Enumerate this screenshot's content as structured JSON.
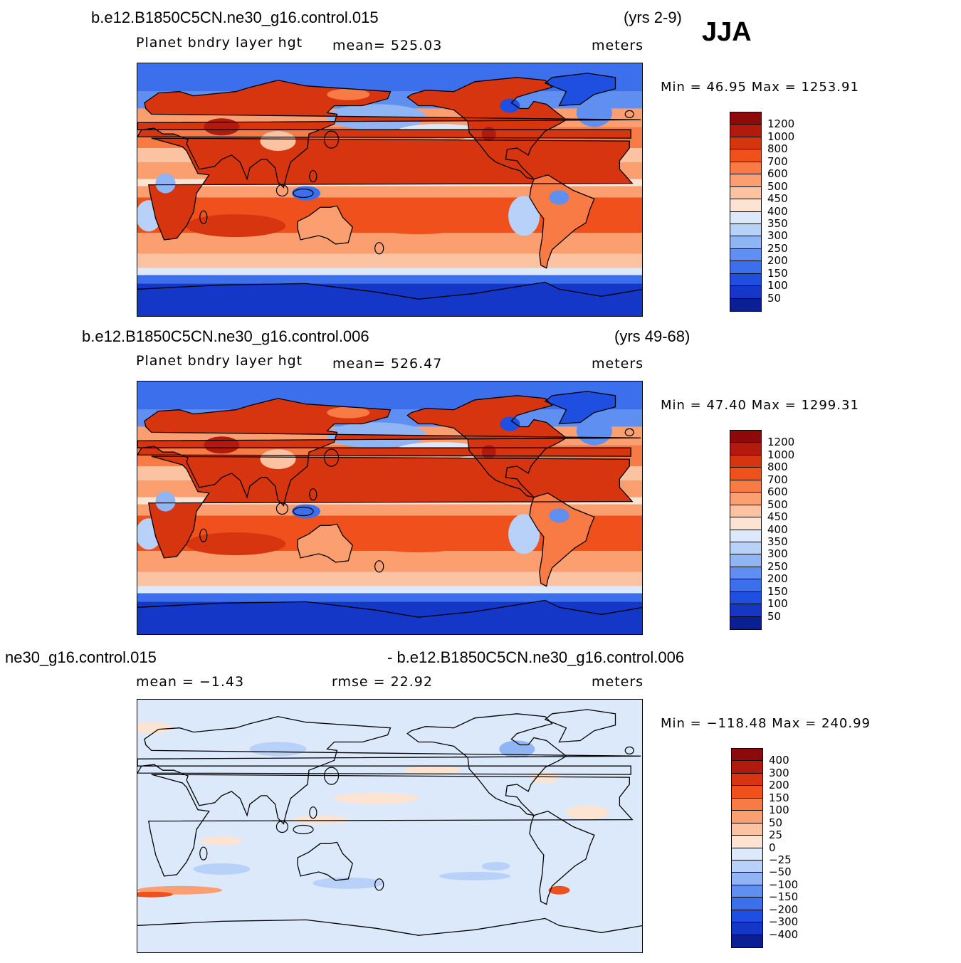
{
  "season": "JJA",
  "panels": [
    {
      "case": "b.e12.B1850C5CN.ne30_g16.control.015",
      "years": "(yrs 2-9)",
      "variable": "Planet bndry layer hgt",
      "mean": "mean= 525.03",
      "units": "meters",
      "minmax": "Min =   46.95 Max = 1253.91",
      "kind": "field"
    },
    {
      "case": "b.e12.B1850C5CN.ne30_g16.control.006",
      "years": "(yrs 49-68)",
      "variable": "Planet bndry layer hgt",
      "mean": "mean= 526.47",
      "units": "meters",
      "minmax": "Min =   47.40 Max = 1299.31",
      "kind": "field"
    },
    {
      "case_left": "ne30_g16.control.015",
      "case_right": "- b.e12.B1850C5CN.ne30_g16.control.006",
      "mean": "mean =   −1.43",
      "rmse": "rmse =   22.92",
      "units": "meters",
      "minmax": "Min = −118.48 Max = 240.99",
      "kind": "diff"
    }
  ],
  "colorbar_field": {
    "labels": [
      "1200",
      "1000",
      "800",
      "700",
      "600",
      "500",
      "450",
      "400",
      "350",
      "300",
      "250",
      "200",
      "150",
      "100",
      "50"
    ],
    "colors": [
      "#8c0a0a",
      "#b11a0c",
      "#d63510",
      "#f0501b",
      "#f87a45",
      "#fb9f71",
      "#fcc3a3",
      "#fde3d1",
      "#dbe9fb",
      "#b7d1f8",
      "#8fb5f5",
      "#5f8ff0",
      "#3b6fec",
      "#1f4fe0",
      "#1437c8",
      "#0b1f94"
    ]
  },
  "colorbar_diff": {
    "labels": [
      "400",
      "300",
      "200",
      "150",
      "100",
      "50",
      "25",
      "0",
      "−25",
      "−50",
      "−100",
      "−150",
      "−200",
      "−300",
      "−400"
    ],
    "colors": [
      "#8c0a0a",
      "#b11a0c",
      "#d63510",
      "#f0501b",
      "#f87a45",
      "#fb9f71",
      "#fcc3a3",
      "#fde3d1",
      "#dbe9fb",
      "#b7d1f8",
      "#8fb5f5",
      "#5f8ff0",
      "#3b6fec",
      "#1f4fe0",
      "#1437c8",
      "#0b1f94"
    ]
  }
}
